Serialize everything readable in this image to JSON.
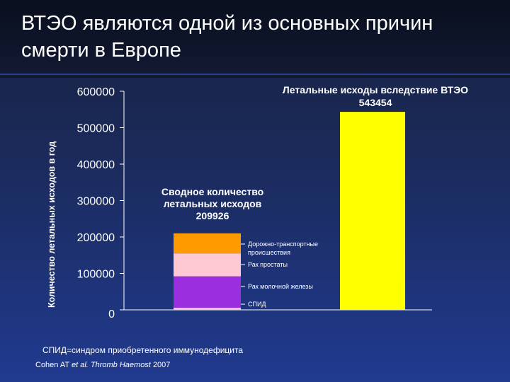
{
  "slide": {
    "title": "ВТЭО являются одной из основных причин\nсмерти в Европе"
  },
  "chart_data": {
    "type": "bar",
    "ylabel": "Количество летальных исходов в год",
    "ylim": [
      0,
      600000
    ],
    "y_ticks": [
      "0",
      "100000",
      "200000",
      "300000",
      "400000",
      "500000",
      "600000"
    ],
    "grid": false,
    "bars": [
      {
        "label_lines": [
          "Сводное количество",
          "летальных исходов",
          "209926"
        ],
        "total": 209926,
        "stacked": true,
        "segments": [
          {
            "name": "СПИД",
            "value": 6000,
            "color": "#ffc0e8"
          },
          {
            "name": "Рак молочной железы",
            "value": 86000,
            "color": "#9b2fe0"
          },
          {
            "name": "Рак простаты",
            "value": 63000,
            "color": "#ffc9d4"
          },
          {
            "name": "Дорожно-транспортные происшествия",
            "value": 54926,
            "color": "#ff9a00"
          }
        ]
      },
      {
        "label_lines": [
          "Летальные исходы вследствие ВТЭО",
          "543454"
        ],
        "value": 543454,
        "color": "#ffff00"
      }
    ],
    "annotations": [
      {
        "segment": "Дорожно-транспортные происшествия",
        "lines": [
          "Дорожно-транспортные",
          "происшествия"
        ]
      },
      {
        "segment": "Рак простаты",
        "lines": [
          "Рак простаты"
        ]
      },
      {
        "segment": "Рак молочной железы",
        "lines": [
          "Рак молочной железы"
        ]
      },
      {
        "segment": "СПИД",
        "lines": [
          "СПИД"
        ]
      }
    ]
  },
  "footnote": "СПИД=синдром приобретенного иммунодефицита",
  "citation": {
    "authors": "Cohen AT ",
    "etal": "et al.",
    "journal": "Thromb Haemost",
    "year": "2007"
  }
}
